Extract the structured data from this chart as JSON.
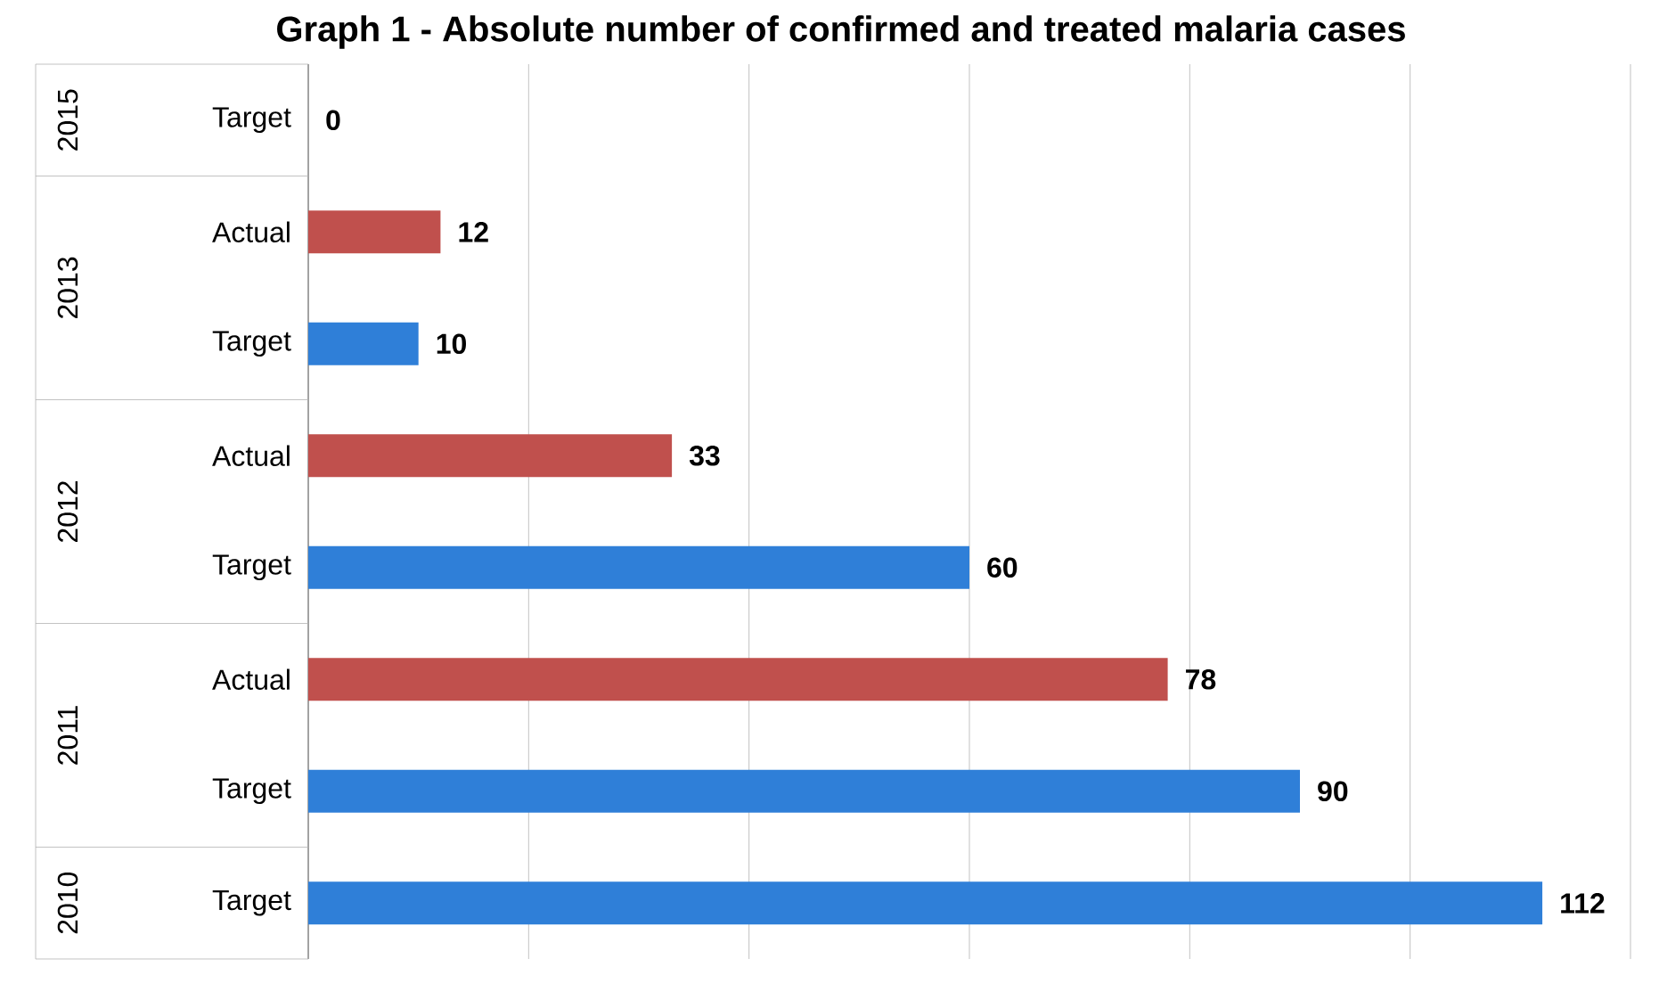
{
  "chart_data": {
    "type": "bar",
    "orientation": "horizontal",
    "title": "Graph 1 - Absolute number of confirmed  and treated malaria cases",
    "categories": [
      "Target",
      "Actual",
      "Target",
      "Actual",
      "Target",
      "Actual",
      "Target",
      "Target"
    ],
    "values": [
      0,
      12,
      10,
      33,
      60,
      78,
      90,
      112
    ],
    "colors": [
      "#2f7fd8",
      "#c0504d",
      "#2f7fd8",
      "#c0504d",
      "#2f7fd8",
      "#c0504d",
      "#2f7fd8",
      "#2f7fd8"
    ],
    "xlim": [
      0,
      120
    ],
    "xticks": [
      {
        "value": 0,
        "label": null
      },
      {
        "value": 20,
        "label": null
      },
      {
        "value": 40,
        "label": null
      },
      {
        "value": 60,
        "label": null
      },
      {
        "value": 80,
        "label": null
      },
      {
        "value": 100,
        "label": null
      },
      {
        "value": 120,
        "label": null
      }
    ],
    "annotations": [
      "2015",
      "2013",
      "2012",
      "2011",
      "2010"
    ],
    "data_labels": true,
    "grid": "x",
    "tick_labels": "y"
  }
}
